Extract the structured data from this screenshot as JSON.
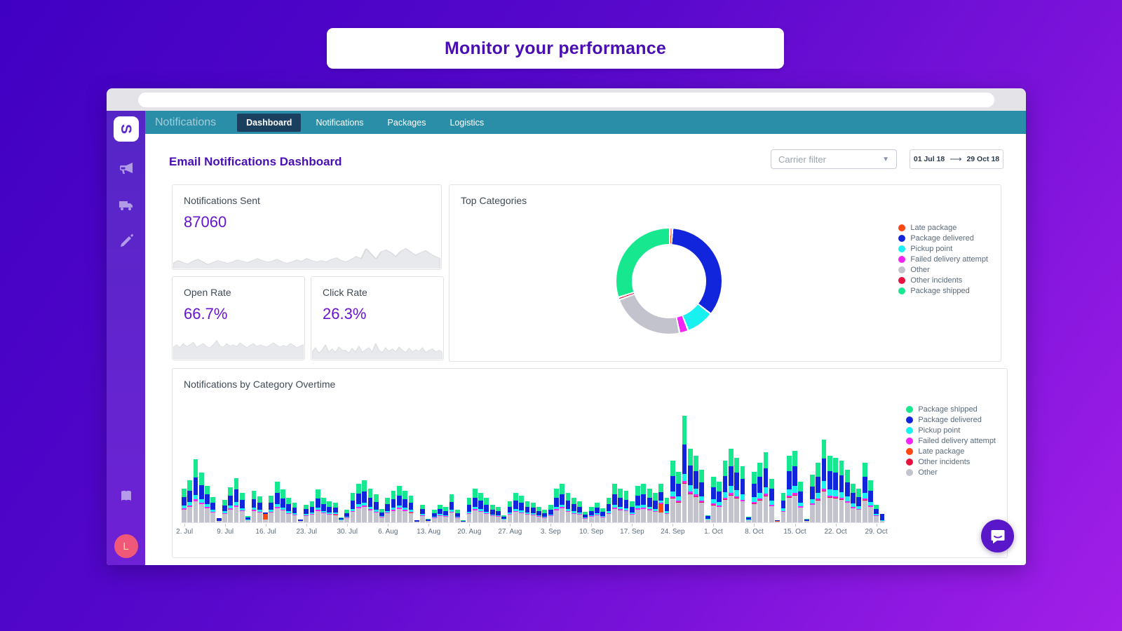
{
  "hero": {
    "title": "Monitor your performance"
  },
  "window": {
    "nav": {
      "brand": "Notifications",
      "tabs": [
        {
          "label": "Dashboard",
          "active": true
        },
        {
          "label": "Notifications",
          "active": false
        },
        {
          "label": "Packages",
          "active": false
        },
        {
          "label": "Logistics",
          "active": false
        }
      ]
    },
    "sidebar": {
      "logo_letter": "S",
      "avatar_letter": "L"
    }
  },
  "page": {
    "title": "Email Notifications Dashboard",
    "carrier_filter_placeholder": "Carrier filter",
    "date_range": {
      "start": "01 Jul 18",
      "end": "29 Oct 18"
    }
  },
  "kpis": {
    "sent": {
      "label": "Notifications Sent",
      "value": "87060"
    },
    "open": {
      "label": "Open Rate",
      "value": "66.7%"
    },
    "click": {
      "label": "Click Rate",
      "value": "26.3%"
    }
  },
  "colors": {
    "shipped": "#17e88f",
    "delivered": "#1125dc",
    "pickup": "#19f0f0",
    "failed": "#f424f4",
    "late": "#ff4713",
    "incidents": "#e8103c",
    "other": "#c3c3cd",
    "spark_fill": "#e7e9ec",
    "spark_line": "#d9dbdf"
  },
  "chart_data": [
    {
      "type": "pie",
      "title": "Top Categories",
      "legend": [
        {
          "key": "late",
          "label": "Late package"
        },
        {
          "key": "delivered",
          "label": "Package delivered"
        },
        {
          "key": "pickup",
          "label": "Pickup point"
        },
        {
          "key": "failed",
          "label": "Failed delivery attempt"
        },
        {
          "key": "other",
          "label": "Other"
        },
        {
          "key": "incidents",
          "label": "Other incidents"
        },
        {
          "key": "shipped",
          "label": "Package shipped"
        }
      ],
      "slices": [
        {
          "key": "late",
          "label": "Late package",
          "value": 0.8
        },
        {
          "key": "delivered",
          "label": "Package delivered",
          "value": 34.5
        },
        {
          "key": "pickup",
          "label": "Pickup point",
          "value": 8.5
        },
        {
          "key": "failed",
          "label": "Failed delivery attempt",
          "value": 2.7
        },
        {
          "key": "other",
          "label": "Other",
          "value": 22.5
        },
        {
          "key": "incidents",
          "label": "Other incidents",
          "value": 0.8
        },
        {
          "key": "shipped",
          "label": "Package shipped",
          "value": 30.2
        }
      ]
    },
    {
      "type": "bar",
      "title": "Notifications by Category Overtime",
      "legend": [
        {
          "key": "shipped",
          "label": "Package shipped"
        },
        {
          "key": "delivered",
          "label": "Package delivered"
        },
        {
          "key": "pickup",
          "label": "Pickup point"
        },
        {
          "key": "failed",
          "label": "Failed delivery attempt"
        },
        {
          "key": "late",
          "label": "Late package"
        },
        {
          "key": "incidents",
          "label": "Other incidents"
        },
        {
          "key": "other",
          "label": "Other"
        }
      ],
      "stack_keys": [
        "other",
        "incidents",
        "late",
        "failed",
        "pickup",
        "delivered",
        "shipped"
      ],
      "x_labels": [
        "2. Jul",
        "9. Jul",
        "16. Jul",
        "23. Jul",
        "30. Jul",
        "6. Aug",
        "13. Aug",
        "20. Aug",
        "27. Aug",
        "3. Sep",
        "10. Sep",
        "17. Sep",
        "24. Sep",
        "1. Oct",
        "8. Oct",
        "15. Oct",
        "22. Oct",
        "29. Oct"
      ],
      "label_every": 7,
      "bars": [
        [
          18,
          0,
          0,
          2,
          4,
          12,
          12
        ],
        [
          22,
          0,
          0,
          2,
          5,
          16,
          15
        ],
        [
          30,
          0,
          0,
          3,
          6,
          25,
          26
        ],
        [
          26,
          0,
          0,
          2,
          5,
          20,
          18
        ],
        [
          20,
          0,
          0,
          2,
          4,
          14,
          12
        ],
        [
          14,
          0,
          0,
          1,
          3,
          10,
          8
        ],
        [
          2,
          0,
          0,
          0,
          0,
          4,
          0
        ],
        [
          12,
          0,
          0,
          1,
          3,
          8,
          8
        ],
        [
          18,
          0,
          0,
          2,
          4,
          14,
          12
        ],
        [
          22,
          0,
          0,
          2,
          5,
          18,
          16
        ],
        [
          16,
          0,
          0,
          1,
          3,
          12,
          10
        ],
        [
          3,
          0,
          0,
          0,
          1,
          3,
          2
        ],
        [
          16,
          0,
          0,
          2,
          3,
          12,
          12
        ],
        [
          14,
          0,
          0,
          1,
          3,
          10,
          9
        ],
        [
          4,
          0,
          8,
          0,
          0,
          2,
          0
        ],
        [
          14,
          0,
          0,
          1,
          3,
          10,
          10
        ],
        [
          20,
          0,
          0,
          2,
          4,
          16,
          16
        ],
        [
          17,
          0,
          0,
          1,
          3,
          13,
          13
        ],
        [
          12,
          0,
          0,
          1,
          3,
          10,
          9
        ],
        [
          10,
          0,
          0,
          1,
          2,
          8,
          7
        ],
        [
          2,
          0,
          0,
          0,
          0,
          2,
          0
        ],
        [
          9,
          0,
          0,
          1,
          2,
          7,
          6
        ],
        [
          11,
          0,
          0,
          1,
          2,
          8,
          8
        ],
        [
          16,
          0,
          0,
          2,
          3,
          13,
          13
        ],
        [
          13,
          0,
          0,
          1,
          2,
          10,
          9
        ],
        [
          11,
          0,
          0,
          1,
          2,
          8,
          8
        ],
        [
          10,
          0,
          1,
          1,
          2,
          7,
          7
        ],
        [
          3,
          0,
          0,
          0,
          1,
          2,
          1
        ],
        [
          6,
          0,
          0,
          1,
          1,
          5,
          5
        ],
        [
          15,
          0,
          0,
          1,
          3,
          12,
          11
        ],
        [
          20,
          0,
          0,
          2,
          4,
          15,
          14
        ],
        [
          22,
          0,
          0,
          2,
          4,
          16,
          16
        ],
        [
          17,
          0,
          0,
          2,
          3,
          13,
          13
        ],
        [
          14,
          0,
          0,
          1,
          3,
          11,
          11
        ],
        [
          7,
          0,
          0,
          1,
          1,
          5,
          5
        ],
        [
          13,
          0,
          0,
          1,
          2,
          10,
          9
        ],
        [
          16,
          0,
          0,
          2,
          3,
          12,
          12
        ],
        [
          19,
          0,
          0,
          2,
          3,
          14,
          14
        ],
        [
          16,
          0,
          0,
          2,
          3,
          12,
          12
        ],
        [
          13,
          0,
          1,
          1,
          3,
          10,
          10
        ],
        [
          1,
          0,
          0,
          0,
          0,
          2,
          0
        ],
        [
          9,
          0,
          0,
          1,
          2,
          7,
          6
        ],
        [
          2,
          0,
          0,
          0,
          0,
          2,
          1
        ],
        [
          6,
          0,
          0,
          1,
          1,
          5,
          5
        ],
        [
          9,
          0,
          0,
          1,
          2,
          7,
          6
        ],
        [
          8,
          0,
          0,
          1,
          1,
          6,
          6
        ],
        [
          14,
          0,
          0,
          1,
          3,
          11,
          11
        ],
        [
          6,
          0,
          0,
          1,
          1,
          5,
          5
        ],
        [
          1,
          0,
          0,
          0,
          0,
          1,
          1
        ],
        [
          12,
          0,
          0,
          1,
          2,
          10,
          10
        ],
        [
          17,
          0,
          0,
          2,
          3,
          13,
          13
        ],
        [
          15,
          0,
          0,
          1,
          3,
          12,
          11
        ],
        [
          12,
          0,
          0,
          1,
          2,
          10,
          10
        ],
        [
          9,
          0,
          0,
          1,
          1,
          7,
          7
        ],
        [
          8,
          0,
          0,
          1,
          1,
          6,
          6
        ],
        [
          4,
          0,
          0,
          0,
          1,
          3,
          2
        ],
        [
          11,
          0,
          0,
          1,
          2,
          8,
          8
        ],
        [
          15,
          0,
          0,
          1,
          3,
          12,
          11
        ],
        [
          13,
          0,
          0,
          1,
          3,
          11,
          10
        ],
        [
          11,
          0,
          0,
          1,
          2,
          8,
          8
        ],
        [
          10,
          0,
          0,
          1,
          2,
          8,
          7
        ],
        [
          8,
          0,
          0,
          1,
          1,
          6,
          6
        ],
        [
          6,
          0,
          0,
          1,
          1,
          5,
          5
        ],
        [
          9,
          0,
          0,
          1,
          1,
          7,
          7
        ],
        [
          17,
          0,
          0,
          2,
          3,
          13,
          13
        ],
        [
          20,
          0,
          0,
          2,
          3,
          15,
          15
        ],
        [
          15,
          0,
          0,
          1,
          3,
          12,
          11
        ],
        [
          12,
          0,
          0,
          1,
          3,
          10,
          9
        ],
        [
          11,
          0,
          0,
          1,
          2,
          8,
          8
        ],
        [
          5,
          0,
          0,
          1,
          1,
          4,
          4
        ],
        [
          8,
          0,
          0,
          1,
          1,
          6,
          6
        ],
        [
          10,
          0,
          0,
          1,
          2,
          8,
          7
        ],
        [
          7,
          0,
          0,
          1,
          1,
          6,
          5
        ],
        [
          12,
          0,
          0,
          1,
          3,
          10,
          9
        ],
        [
          19,
          0,
          0,
          2,
          4,
          15,
          15
        ],
        [
          17,
          0,
          0,
          2,
          3,
          13,
          13
        ],
        [
          16,
          0,
          0,
          1,
          3,
          12,
          13
        ],
        [
          11,
          0,
          0,
          1,
          2,
          8,
          8
        ],
        [
          18,
          0,
          0,
          2,
          4,
          14,
          14
        ],
        [
          19,
          0,
          0,
          2,
          4,
          15,
          15
        ],
        [
          17,
          0,
          0,
          2,
          3,
          13,
          13
        ],
        [
          15,
          0,
          0,
          1,
          3,
          12,
          11
        ],
        [
          14,
          0,
          12,
          2,
          3,
          12,
          12
        ],
        [
          12,
          0,
          0,
          1,
          3,
          10,
          9
        ],
        [
          34,
          1,
          0,
          2,
          7,
          22,
          22
        ],
        [
          28,
          1,
          0,
          2,
          6,
          18,
          17
        ],
        [
          55,
          1,
          0,
          3,
          10,
          42,
          41
        ],
        [
          40,
          1,
          0,
          3,
          9,
          28,
          24
        ],
        [
          36,
          1,
          0,
          3,
          8,
          25,
          22
        ],
        [
          28,
          1,
          0,
          2,
          6,
          20,
          18
        ],
        [
          4,
          0,
          0,
          0,
          1,
          4,
          1
        ],
        [
          24,
          1,
          0,
          2,
          6,
          17,
          15
        ],
        [
          22,
          0,
          0,
          2,
          5,
          15,
          14
        ],
        [
          32,
          1,
          0,
          2,
          8,
          23,
          22
        ],
        [
          38,
          1,
          0,
          3,
          10,
          28,
          25
        ],
        [
          34,
          1,
          0,
          2,
          9,
          25,
          21
        ],
        [
          30,
          0,
          0,
          2,
          8,
          22,
          18
        ],
        [
          3,
          0,
          0,
          0,
          1,
          3,
          1
        ],
        [
          26,
          1,
          0,
          2,
          7,
          19,
          17
        ],
        [
          31,
          1,
          0,
          2,
          8,
          23,
          20
        ],
        [
          37,
          1,
          0,
          3,
          9,
          27,
          23
        ],
        [
          23,
          0,
          0,
          2,
          6,
          17,
          14
        ],
        [
          1,
          0,
          1,
          0,
          0,
          1,
          0
        ],
        [
          15,
          0,
          0,
          1,
          4,
          11,
          11
        ],
        [
          35,
          1,
          0,
          2,
          9,
          26,
          22
        ],
        [
          38,
          1,
          0,
          3,
          10,
          28,
          22
        ],
        [
          21,
          0,
          0,
          2,
          5,
          16,
          14
        ],
        [
          2,
          0,
          0,
          0,
          0,
          2,
          1
        ],
        [
          25,
          0,
          0,
          2,
          6,
          18,
          17
        ],
        [
          31,
          1,
          0,
          2,
          8,
          23,
          20
        ],
        [
          44,
          1,
          0,
          3,
          11,
          32,
          27
        ],
        [
          35,
          1,
          0,
          2,
          9,
          26,
          22
        ],
        [
          34,
          1,
          0,
          2,
          9,
          25,
          21
        ],
        [
          32,
          1,
          0,
          2,
          8,
          24,
          21
        ],
        [
          28,
          0,
          0,
          2,
          7,
          20,
          18
        ],
        [
          20,
          0,
          0,
          2,
          5,
          15,
          13
        ],
        [
          18,
          0,
          0,
          1,
          4,
          13,
          12
        ],
        [
          31,
          1,
          0,
          2,
          8,
          23,
          20
        ],
        [
          22,
          0,
          0,
          2,
          5,
          16,
          15
        ],
        [
          9,
          0,
          0,
          1,
          2,
          7,
          6
        ],
        [
          2,
          0,
          0,
          0,
          1,
          9,
          0
        ]
      ]
    },
    {
      "type": "area",
      "title": "Notifications Sent trend",
      "values": [
        8,
        12,
        9,
        7,
        11,
        14,
        10,
        6,
        9,
        12,
        10,
        8,
        10,
        13,
        11,
        9,
        12,
        15,
        12,
        10,
        11,
        14,
        10,
        8,
        10,
        13,
        11,
        15,
        12,
        10,
        12,
        10,
        14,
        16,
        12,
        10,
        14,
        18,
        15,
        30,
        22,
        14,
        25,
        28,
        24,
        18,
        26,
        30,
        25,
        20,
        24,
        27,
        22,
        18,
        15
      ]
    },
    {
      "type": "area",
      "title": "Open Rate trend",
      "values": [
        20,
        24,
        19,
        26,
        21,
        24,
        28,
        20,
        23,
        26,
        21,
        19,
        24,
        31,
        22,
        20,
        26,
        22,
        24,
        21,
        27,
        23,
        19,
        23,
        26,
        21,
        24,
        22,
        20,
        24,
        27,
        23,
        20,
        23,
        21,
        26,
        23,
        19,
        22,
        24
      ]
    },
    {
      "type": "area",
      "title": "Click Rate trend",
      "values": [
        12,
        19,
        10,
        15,
        24,
        12,
        17,
        11,
        20,
        15,
        15,
        10,
        18,
        12,
        22,
        11,
        16,
        19,
        12,
        26,
        15,
        11,
        19,
        13,
        17,
        12,
        20,
        15,
        11,
        18,
        12,
        16,
        13,
        19,
        11,
        15,
        17,
        12,
        15,
        11
      ]
    }
  ]
}
